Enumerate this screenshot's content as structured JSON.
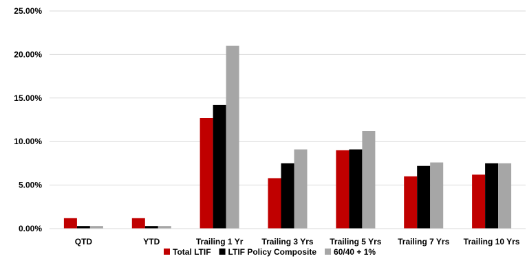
{
  "chart_data": {
    "type": "bar",
    "categories": [
      "QTD",
      "YTD",
      "Trailing 1 Yr",
      "Trailing 3 Yrs",
      "Trailing 5 Yrs",
      "Trailing 7 Yrs",
      "Trailing 10 Yrs"
    ],
    "series": [
      {
        "name": "Total LTIF",
        "color": "#c00000",
        "values": [
          1.2,
          1.2,
          12.7,
          5.8,
          9.0,
          6.0,
          6.2
        ]
      },
      {
        "name": "LTIF Policy Composite",
        "color": "#000000",
        "values": [
          0.3,
          0.3,
          14.2,
          7.5,
          9.1,
          7.2,
          7.5
        ]
      },
      {
        "name": "60/40 + 1%",
        "color": "#a6a6a6",
        "values": [
          0.3,
          0.3,
          21.0,
          9.1,
          11.2,
          7.6,
          7.5
        ]
      }
    ],
    "ylim": [
      0,
      25
    ],
    "yticks": [
      "0.00%",
      "5.00%",
      "10.00%",
      "15.00%",
      "20.00%",
      "25.00%"
    ],
    "ytick_values": [
      0,
      5,
      10,
      15,
      20,
      25
    ],
    "grid": true,
    "legend_position": "bottom"
  }
}
